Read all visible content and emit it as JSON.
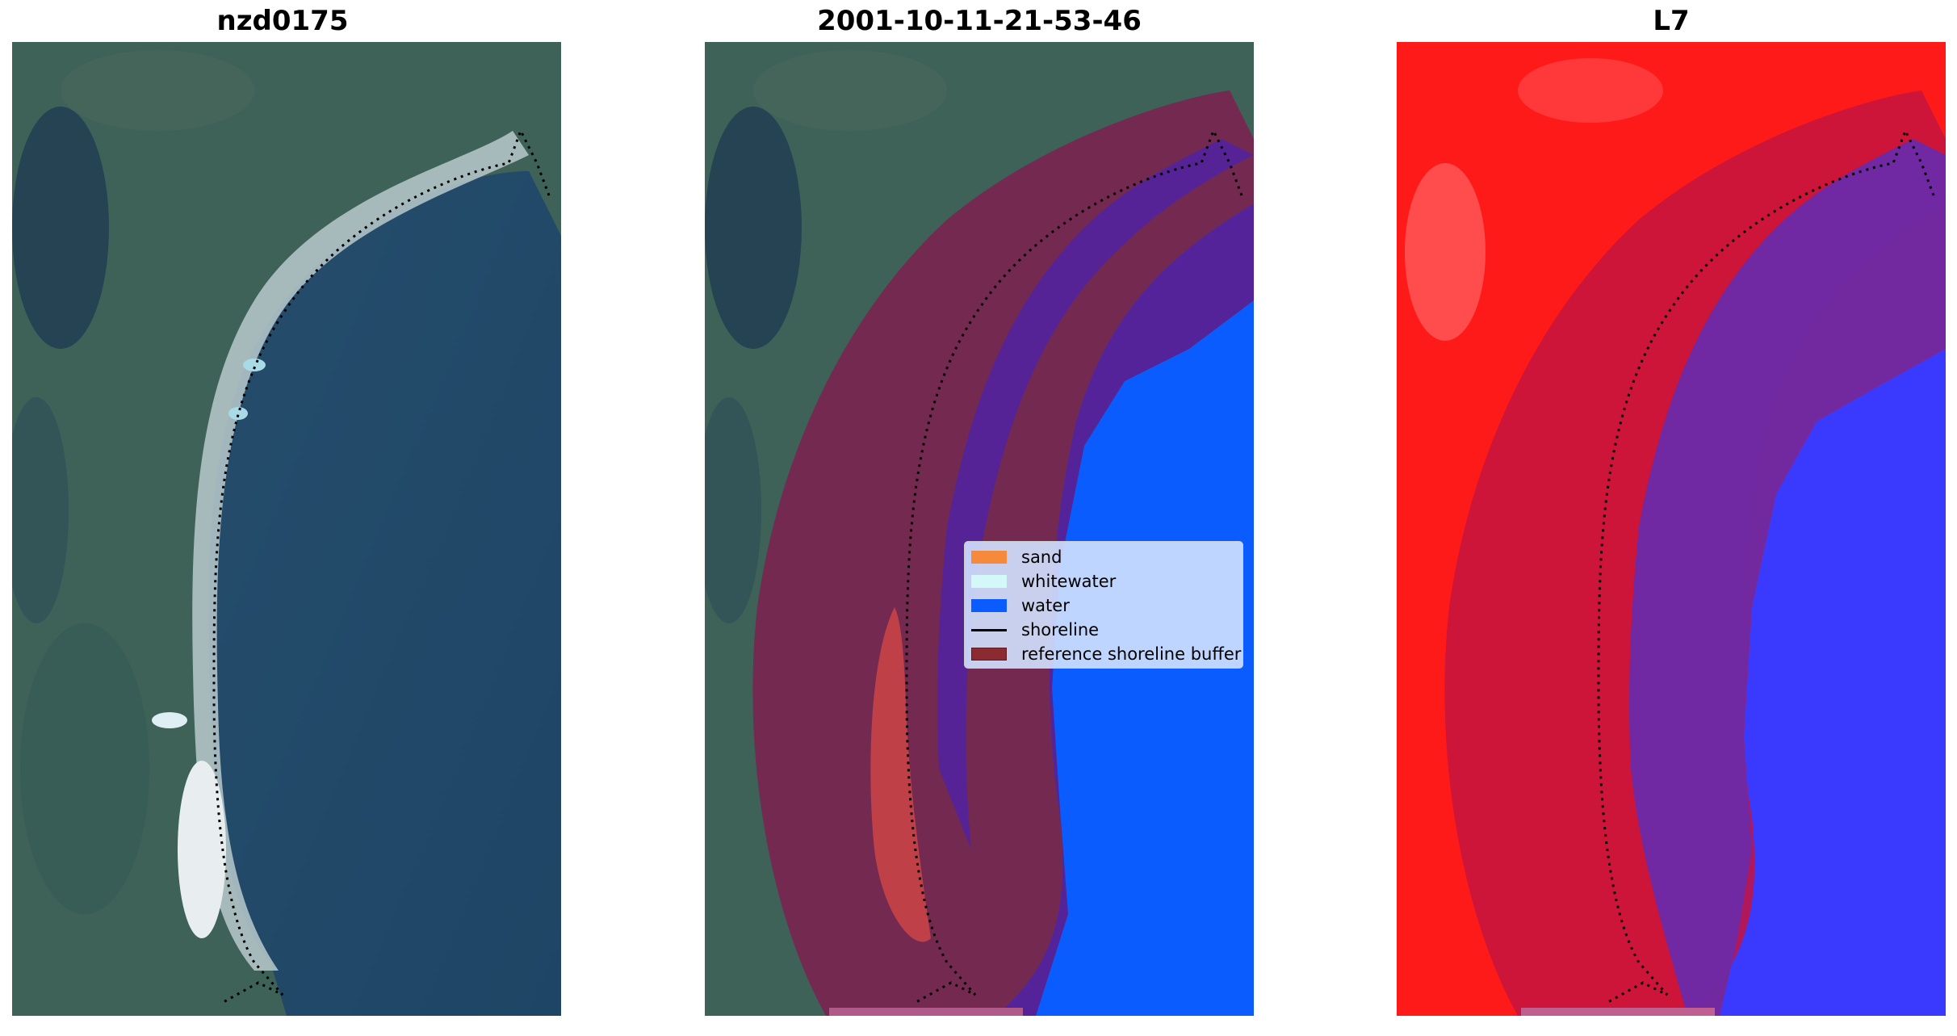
{
  "panels": [
    {
      "title": "nzd0175"
    },
    {
      "title": "2001-10-11-21-53-46"
    },
    {
      "title": "L7"
    }
  ],
  "legend": {
    "items": [
      {
        "label": "sand",
        "color": "#f58a3c",
        "kind": "patch"
      },
      {
        "label": "whitewater",
        "color": "#d4f7f7",
        "kind": "patch"
      },
      {
        "label": "water",
        "color": "#0a5cff",
        "kind": "patch"
      },
      {
        "label": "shoreline",
        "color": "#000000",
        "kind": "line"
      },
      {
        "label": "reference shoreline buffer",
        "color": "#8c2a32",
        "kind": "patch"
      }
    ]
  },
  "colors": {
    "land": "#3d5f57",
    "sea": "#22496a",
    "beach": "#c7d2d6",
    "buffer": "#7a2550",
    "water_class": "#0a5cff",
    "water_in_buffer": "#54239a",
    "sand_in_buffer": "#c04048",
    "index_positive": "#ff1a1a",
    "index_negative": "#3a3aff"
  }
}
